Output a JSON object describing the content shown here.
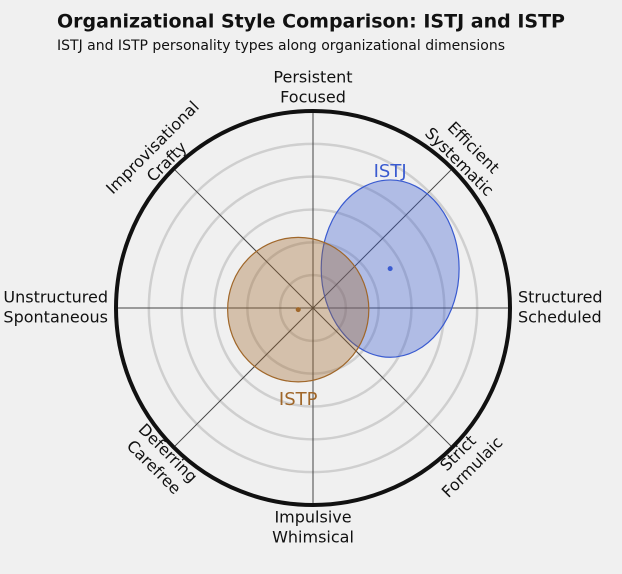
{
  "chart_data": {
    "type": "ellipse",
    "title": "Organizational Style Comparison: ISTJ and ISTP",
    "subtitle": "ISTJ and ISTP personality types along organizational dimensions",
    "axes": [
      [
        "Persistent",
        "Focused"
      ],
      [
        "Efficient",
        "Systematic"
      ],
      [
        "Structured",
        "Scheduled"
      ],
      [
        "Strict",
        "Formulaic"
      ],
      [
        "Impulsive",
        "Whimsical"
      ],
      [
        "Deferring",
        "Carefree"
      ],
      [
        "Unstructured",
        "Spontaneous"
      ],
      [
        "Improvisational",
        "Crafty"
      ]
    ],
    "rlim": [
      0,
      6
    ],
    "rticks": [
      1,
      2,
      3,
      4,
      5
    ],
    "grid": true,
    "series": [
      {
        "name": "ISTJ",
        "color": "#3a5bd0",
        "x": 2.35,
        "y": 1.2,
        "rx": 2.1,
        "ry": 2.7
      },
      {
        "name": "ISTP",
        "color": "#a0672a",
        "x": -0.45,
        "y": -0.05,
        "rx": 2.15,
        "ry": 2.2
      }
    ]
  }
}
